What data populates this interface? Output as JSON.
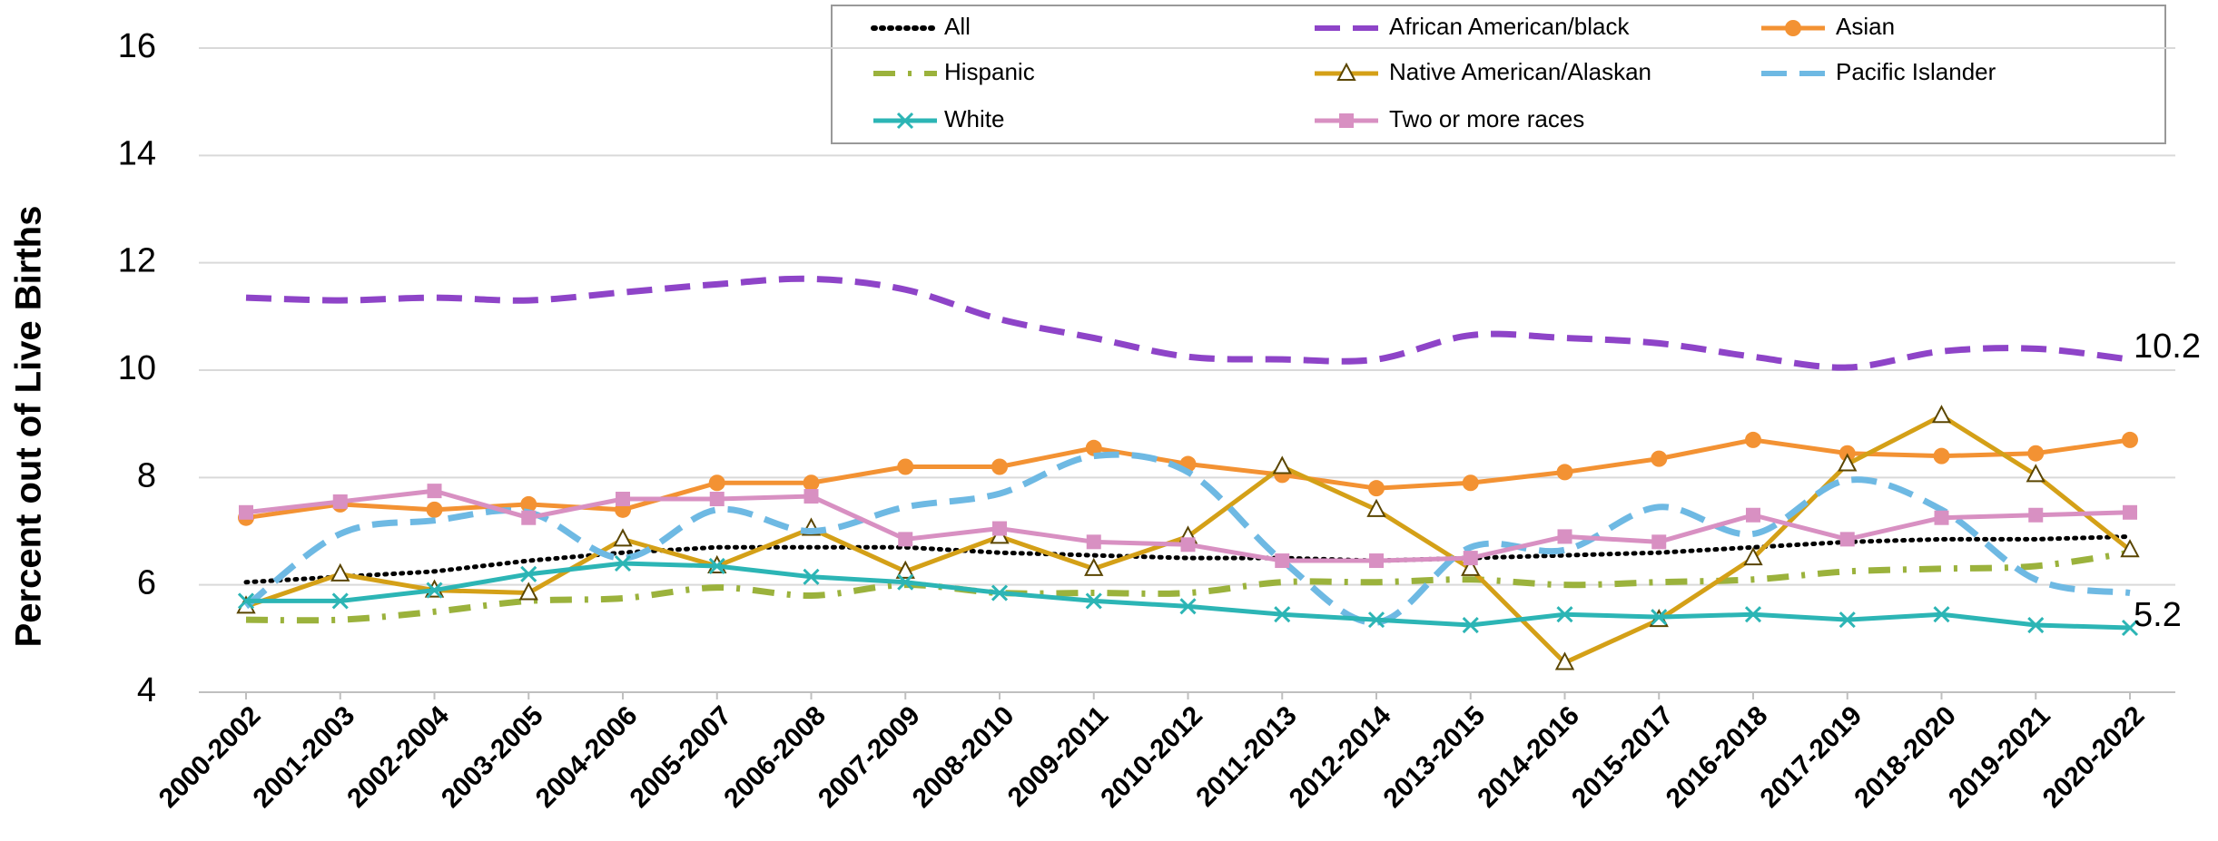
{
  "chart_data": {
    "type": "line",
    "y_label": "Percent out of Live Births",
    "categories": [
      "2000-2002",
      "2001-2003",
      "2002-2004",
      "2003-2005",
      "2004-2006",
      "2005-2007",
      "2006-2008",
      "2007-2009",
      "2008-2010",
      "2009-2011",
      "2010-2012",
      "2011-2013",
      "2012-2014",
      "2013-2015",
      "2014-2016",
      "2015-2017",
      "2016-2018",
      "2017-2019",
      "2018-2020",
      "2019-2021",
      "2020-2022"
    ],
    "ylim": [
      4,
      16.5
    ],
    "yticks": [
      4,
      6,
      8,
      10,
      12,
      14,
      16
    ],
    "grid": true,
    "legend": "top",
    "series": [
      {
        "name": "All",
        "color": "#000000",
        "dash": "dotted",
        "values": [
          6.05,
          6.15,
          6.25,
          6.45,
          6.6,
          6.7,
          6.7,
          6.7,
          6.6,
          6.55,
          6.5,
          6.5,
          6.45,
          6.5,
          6.55,
          6.6,
          6.7,
          6.8,
          6.85,
          6.85,
          6.9
        ]
      },
      {
        "name": "African American/black",
        "color": "#8E44C8",
        "dash": "dashed",
        "smooth": true,
        "end_label": true,
        "values": [
          11.35,
          11.3,
          11.35,
          11.3,
          11.45,
          11.6,
          11.7,
          11.5,
          10.95,
          10.6,
          10.25,
          10.2,
          10.2,
          10.65,
          10.6,
          10.5,
          10.25,
          10.05,
          10.35,
          10.4,
          10.2
        ]
      },
      {
        "name": "Asian",
        "color": "#F39233",
        "dash": "solid",
        "marker": "circle",
        "values": [
          7.25,
          7.5,
          7.4,
          7.5,
          7.4,
          7.9,
          7.9,
          8.2,
          8.2,
          8.55,
          8.25,
          8.05,
          7.8,
          7.9,
          8.1,
          8.35,
          8.7,
          8.45,
          8.4,
          8.45,
          8.7
        ]
      },
      {
        "name": "Hispanic",
        "color": "#9BB23C",
        "dash": "dashdot",
        "smooth": true,
        "values": [
          5.35,
          5.35,
          5.5,
          5.7,
          5.75,
          5.95,
          5.8,
          6.0,
          5.85,
          5.85,
          5.85,
          6.05,
          6.05,
          6.1,
          6.0,
          6.05,
          6.1,
          6.25,
          6.3,
          6.35,
          6.6
        ]
      },
      {
        "name": "Native American/Alaskan",
        "color": "#D4A017",
        "dash": "solid",
        "marker": "triangle",
        "values": [
          5.6,
          6.2,
          5.9,
          5.85,
          6.85,
          6.35,
          7.05,
          6.25,
          6.9,
          6.3,
          6.9,
          8.2,
          7.4,
          6.3,
          4.55,
          5.35,
          6.5,
          8.25,
          9.15,
          8.05,
          6.65
        ]
      },
      {
        "name": "Pacific Islander",
        "color": "#6EB9E3",
        "dash": "dashed",
        "smooth": true,
        "values": [
          5.6,
          6.95,
          7.2,
          7.35,
          6.5,
          7.4,
          7.0,
          7.45,
          7.7,
          8.4,
          8.1,
          6.45,
          5.3,
          6.7,
          6.65,
          7.45,
          6.95,
          7.95,
          7.4,
          6.1,
          5.85
        ]
      },
      {
        "name": "White",
        "color": "#2CB5B5",
        "dash": "solid",
        "marker": "x",
        "end_label": true,
        "values": [
          5.7,
          5.7,
          5.9,
          6.2,
          6.4,
          6.35,
          6.15,
          6.05,
          5.85,
          5.7,
          5.6,
          5.45,
          5.35,
          5.25,
          5.45,
          5.4,
          5.45,
          5.35,
          5.45,
          5.25,
          5.2
        ]
      },
      {
        "name": "Two or more races",
        "color": "#D890C2",
        "dash": "solid",
        "marker": "square",
        "values": [
          7.35,
          7.55,
          7.75,
          7.25,
          7.6,
          7.6,
          7.65,
          6.85,
          7.05,
          6.8,
          6.75,
          6.45,
          6.45,
          6.5,
          6.9,
          6.8,
          7.3,
          6.85,
          7.25,
          7.3,
          7.35
        ]
      }
    ]
  }
}
